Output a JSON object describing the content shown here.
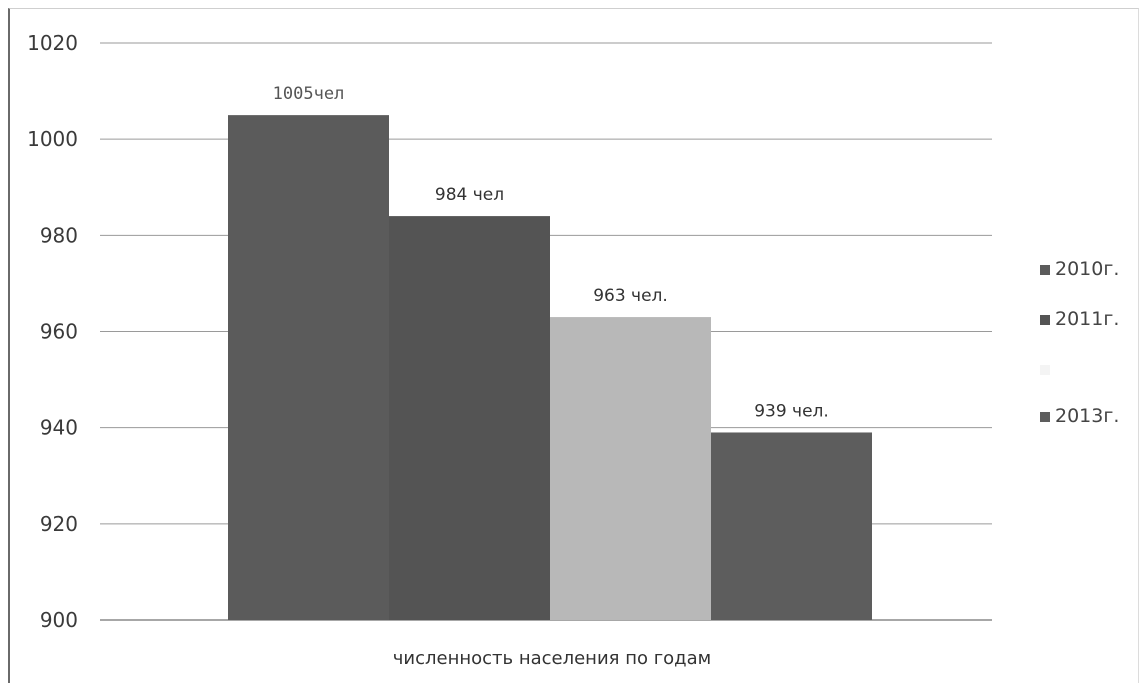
{
  "chart_data": {
    "type": "bar",
    "xlabel": "численность населения по годам",
    "ylabel": "",
    "ylim": [
      900,
      1020
    ],
    "yticks": [
      900,
      920,
      940,
      960,
      980,
      1000,
      1020
    ],
    "grid": true,
    "legend_position": "right",
    "series": [
      {
        "name": "2010г.",
        "value": 1005,
        "label": "1005чел",
        "color": "#5b5b5b"
      },
      {
        "name": "2011г.",
        "value": 984,
        "label": "984 чел",
        "color": "#545454"
      },
      {
        "name": "",
        "value": 963,
        "label": "963 чел.",
        "color": "#b8b8b8"
      },
      {
        "name": "2013г.",
        "value": 939,
        "label": "939 чел.",
        "color": "#5d5d5d"
      }
    ],
    "colors": {
      "gridline": "#9a9a9a",
      "axis": "#8a8a8a"
    }
  }
}
